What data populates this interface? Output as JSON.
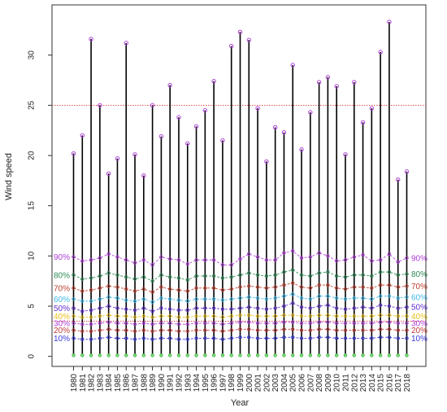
{
  "chart_data": {
    "type": "line",
    "xlabel": "Year",
    "ylabel": "Wind speed",
    "ylim": [
      -1,
      35
    ],
    "yticks": [
      0,
      5,
      10,
      15,
      20,
      25,
      30
    ],
    "reference_lines": [
      {
        "y": 25,
        "color": "#e05050"
      },
      {
        "y": 3.5,
        "color": "#e05050"
      }
    ],
    "x": [
      1980,
      1981,
      1982,
      1983,
      1984,
      1985,
      1986,
      1987,
      1988,
      1989,
      1990,
      1991,
      1992,
      1993,
      1994,
      1995,
      1996,
      1997,
      1998,
      1999,
      2000,
      2001,
      2002,
      2003,
      2004,
      2005,
      2006,
      2007,
      2008,
      2009,
      2010,
      2011,
      2012,
      2013,
      2014,
      2015,
      2016,
      2017,
      2018
    ],
    "max_values": [
      20.2,
      22,
      31.6,
      25,
      18.2,
      19.7,
      31.2,
      20.1,
      18,
      25,
      21.9,
      27,
      23.8,
      21.2,
      22.9,
      24.5,
      27.4,
      21.5,
      30.9,
      32.3,
      31.5,
      24.7,
      19.4,
      22.8,
      22.3,
      29,
      20.6,
      24.3,
      27.3,
      27.8,
      26.9,
      20.1,
      27.3,
      23.3,
      24.7,
      30.3,
      33.3,
      17.6,
      18.4
    ],
    "min_values": [
      0.1,
      0.1,
      0.1,
      0.1,
      0.1,
      0.1,
      0.1,
      0.1,
      0.1,
      0.1,
      0.1,
      0.1,
      0.1,
      0.1,
      0.1,
      0.1,
      0.1,
      0.1,
      0.1,
      0.1,
      0.1,
      0.1,
      0.1,
      0.1,
      0.1,
      0.1,
      0.1,
      0.1,
      0.1,
      0.1,
      0.1,
      0.1,
      0.1,
      0.1,
      0.1,
      0.1,
      0.1,
      0.1,
      0.1
    ],
    "series": [
      {
        "name": "10%",
        "color": "#3a3adf",
        "values": [
          1.8,
          1.7,
          1.7,
          1.8,
          1.9,
          1.8,
          1.8,
          1.7,
          1.8,
          1.7,
          1.8,
          1.8,
          1.7,
          1.7,
          1.8,
          1.8,
          1.8,
          1.7,
          1.8,
          1.9,
          1.9,
          1.8,
          1.8,
          1.8,
          1.9,
          1.9,
          1.8,
          1.8,
          1.9,
          1.9,
          1.8,
          1.8,
          1.8,
          1.8,
          1.8,
          1.9,
          1.9,
          1.8,
          1.8
        ]
      },
      {
        "name": "20%",
        "color": "#c03a3a",
        "values": [
          2.6,
          2.5,
          2.5,
          2.6,
          2.7,
          2.6,
          2.6,
          2.5,
          2.6,
          2.5,
          2.6,
          2.6,
          2.5,
          2.5,
          2.6,
          2.6,
          2.6,
          2.5,
          2.6,
          2.7,
          2.7,
          2.6,
          2.6,
          2.6,
          2.7,
          2.7,
          2.6,
          2.6,
          2.7,
          2.7,
          2.6,
          2.6,
          2.6,
          2.6,
          2.6,
          2.7,
          2.7,
          2.6,
          2.6
        ]
      },
      {
        "name": "30%",
        "color": "#b040d8",
        "values": [
          3.3,
          3.2,
          3.2,
          3.3,
          3.4,
          3.3,
          3.3,
          3.2,
          3.3,
          3.2,
          3.3,
          3.3,
          3.2,
          3.2,
          3.3,
          3.3,
          3.3,
          3.2,
          3.3,
          3.4,
          3.4,
          3.3,
          3.3,
          3.3,
          3.4,
          3.4,
          3.3,
          3.3,
          3.4,
          3.4,
          3.3,
          3.3,
          3.3,
          3.3,
          3.3,
          3.4,
          3.4,
          3.3,
          3.3
        ]
      },
      {
        "name": "40%",
        "color": "#e8c020",
        "values": [
          4.0,
          3.9,
          3.9,
          4.0,
          4.1,
          4.0,
          4.0,
          3.9,
          4.0,
          3.9,
          4.0,
          4.0,
          3.9,
          3.9,
          4.0,
          4.0,
          4.0,
          3.9,
          4.0,
          4.1,
          4.1,
          4.0,
          4.0,
          4.0,
          4.1,
          4.1,
          4.0,
          4.0,
          4.1,
          4.1,
          4.0,
          4.0,
          4.0,
          4.0,
          4.0,
          4.1,
          4.1,
          4.0,
          4.0
        ]
      },
      {
        "name": "50%",
        "color": "#6030d0",
        "values": [
          4.8,
          4.5,
          4.6,
          4.8,
          5.0,
          4.8,
          4.7,
          4.6,
          4.8,
          4.5,
          4.8,
          4.7,
          4.6,
          4.6,
          4.8,
          4.8,
          4.8,
          4.7,
          4.7,
          4.8,
          4.9,
          4.8,
          4.7,
          4.8,
          5.0,
          5.3,
          4.9,
          4.8,
          5.0,
          5.1,
          4.8,
          4.7,
          4.8,
          4.9,
          4.8,
          5.1,
          5.0,
          4.8,
          4.9
        ]
      },
      {
        "name": "60%",
        "color": "#40b8e8",
        "values": [
          5.7,
          5.5,
          5.5,
          5.7,
          5.9,
          5.8,
          5.6,
          5.5,
          5.7,
          5.4,
          5.8,
          5.7,
          5.6,
          5.5,
          5.7,
          5.7,
          5.7,
          5.6,
          5.7,
          5.8,
          5.9,
          5.8,
          5.7,
          5.8,
          6.0,
          6.2,
          5.8,
          5.7,
          6.0,
          6.0,
          5.8,
          5.7,
          5.8,
          5.8,
          5.7,
          6.0,
          6.0,
          5.8,
          5.9
        ]
      },
      {
        "name": "70%",
        "color": "#c04030",
        "values": [
          6.8,
          6.5,
          6.6,
          6.8,
          7.0,
          6.9,
          6.7,
          6.5,
          6.7,
          6.4,
          6.9,
          6.7,
          6.6,
          6.5,
          6.8,
          6.8,
          6.8,
          6.6,
          6.7,
          6.9,
          7.0,
          6.9,
          6.8,
          6.9,
          7.1,
          7.3,
          6.9,
          6.8,
          7.1,
          7.1,
          6.8,
          6.7,
          6.9,
          6.9,
          6.8,
          7.1,
          7.1,
          6.9,
          7.0
        ]
      },
      {
        "name": "80%",
        "color": "#2e8b57",
        "values": [
          8.1,
          7.7,
          7.8,
          8.0,
          8.3,
          8.1,
          7.9,
          7.7,
          7.9,
          7.5,
          8.1,
          7.9,
          7.8,
          7.6,
          8.0,
          8.0,
          8.0,
          7.8,
          7.9,
          8.1,
          8.3,
          8.1,
          8.0,
          8.1,
          8.4,
          8.6,
          8.1,
          8.0,
          8.3,
          8.4,
          8.0,
          7.9,
          8.1,
          8.1,
          8.0,
          8.4,
          8.4,
          8.1,
          8.2
        ]
      },
      {
        "name": "90%",
        "color": "#b040d8",
        "values": [
          9.9,
          9.5,
          9.6,
          9.8,
          10.2,
          9.9,
          9.6,
          9.3,
          9.6,
          9.1,
          9.9,
          9.7,
          9.6,
          9.2,
          9.6,
          9.6,
          9.6,
          9.1,
          9.1,
          9.7,
          10.2,
          9.9,
          9.6,
          9.6,
          10.3,
          10.5,
          9.8,
          9.9,
          10.3,
          10.0,
          9.5,
          9.6,
          9.9,
          10.1,
          9.5,
          9.6,
          10.2,
          9.4,
          9.8
        ]
      }
    ]
  }
}
